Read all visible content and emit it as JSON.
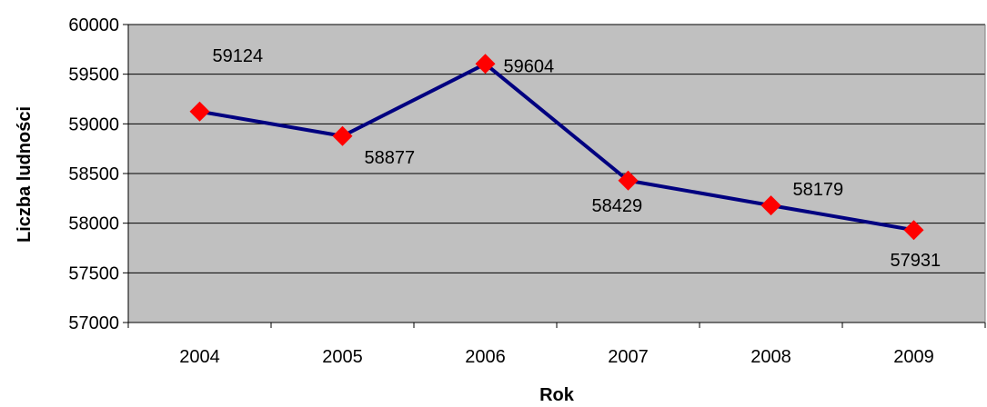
{
  "chart_data": {
    "type": "line",
    "title": "",
    "xlabel": "Rok",
    "ylabel": "Liczba ludności",
    "categories": [
      "2004",
      "2005",
      "2006",
      "2007",
      "2008",
      "2009"
    ],
    "series": [
      {
        "values": [
          59124,
          58877,
          59604,
          58429,
          58179,
          57931
        ],
        "data_labels": [
          "59124",
          "58877",
          "59604",
          "58429",
          "58179",
          "57931"
        ]
      }
    ],
    "ylim": [
      57000,
      60000
    ],
    "y_ticks": [
      57000,
      57500,
      58000,
      58500,
      59000,
      59500,
      60000
    ],
    "y_tick_labels": [
      "57000",
      "57500",
      "58000",
      "58500",
      "59000",
      "59500",
      "60000"
    ],
    "grid": "horizontal",
    "legend": "none",
    "colors": {
      "plot_background": "#c0c0c0",
      "line": "#000080",
      "marker": "#ff0000",
      "grid": "#000000"
    }
  }
}
